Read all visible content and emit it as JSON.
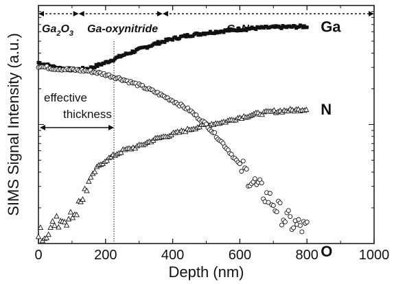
{
  "chart_data": {
    "type": "scatter",
    "xlabel": "Depth (nm)",
    "ylabel": "SIMS Signal Intensity (a.u.)",
    "xlim": [
      0,
      1000
    ],
    "ylim": [
      0,
      1
    ],
    "y_ticks_labeled": false,
    "x_ticks": [
      "0",
      "200",
      "400",
      "600",
      "800",
      "1000"
    ],
    "x_tick_values": [
      0,
      200,
      400,
      600,
      800,
      1000
    ],
    "grid": false,
    "regions": [
      {
        "label_parts": [
          "Ga",
          "2",
          "O",
          "3"
        ],
        "x_start": 0,
        "x_end": 120
      },
      {
        "label": "Ga-oxynitride",
        "x_start": 120,
        "x_end": 370
      },
      {
        "label": "GaN",
        "x_start": 370,
        "x_end": 1000
      }
    ],
    "vertical_line_x": 225,
    "annotation": {
      "line1": "effective",
      "line2": "thickness",
      "arrow_from": 0,
      "arrow_to": 225
    },
    "series": [
      {
        "name": "Ga",
        "marker": "filled-square",
        "x": [
          0,
          50,
          100,
          150,
          200,
          250,
          300,
          350,
          400,
          450,
          500,
          550,
          600,
          650,
          700,
          750,
          800
        ],
        "y": [
          0.76,
          0.74,
          0.73,
          0.735,
          0.76,
          0.79,
          0.815,
          0.84,
          0.86,
          0.875,
          0.885,
          0.893,
          0.9,
          0.905,
          0.908,
          0.91,
          0.912
        ]
      },
      {
        "name": "N",
        "marker": "open-triangle",
        "x": [
          0,
          25,
          50,
          75,
          100,
          125,
          150,
          175,
          200,
          250,
          300,
          350,
          400,
          450,
          500,
          550,
          600,
          650,
          700,
          750,
          800
        ],
        "y": [
          0.04,
          0.04,
          0.09,
          0.1,
          0.11,
          0.17,
          0.26,
          0.32,
          0.35,
          0.39,
          0.41,
          0.44,
          0.46,
          0.48,
          0.5,
          0.51,
          0.53,
          0.545,
          0.555,
          0.56,
          0.565
        ]
      },
      {
        "name": "O",
        "marker": "open-circle",
        "x": [
          0,
          50,
          100,
          150,
          200,
          250,
          300,
          350,
          400,
          450,
          500,
          550,
          600,
          650,
          700,
          720,
          740,
          760,
          780,
          800
        ],
        "y": [
          0.745,
          0.735,
          0.73,
          0.725,
          0.71,
          0.69,
          0.665,
          0.635,
          0.6,
          0.56,
          0.5,
          0.42,
          0.33,
          0.24,
          0.17,
          0.13,
          0.1,
          0.08,
          0.07,
          0.06
        ]
      }
    ]
  }
}
